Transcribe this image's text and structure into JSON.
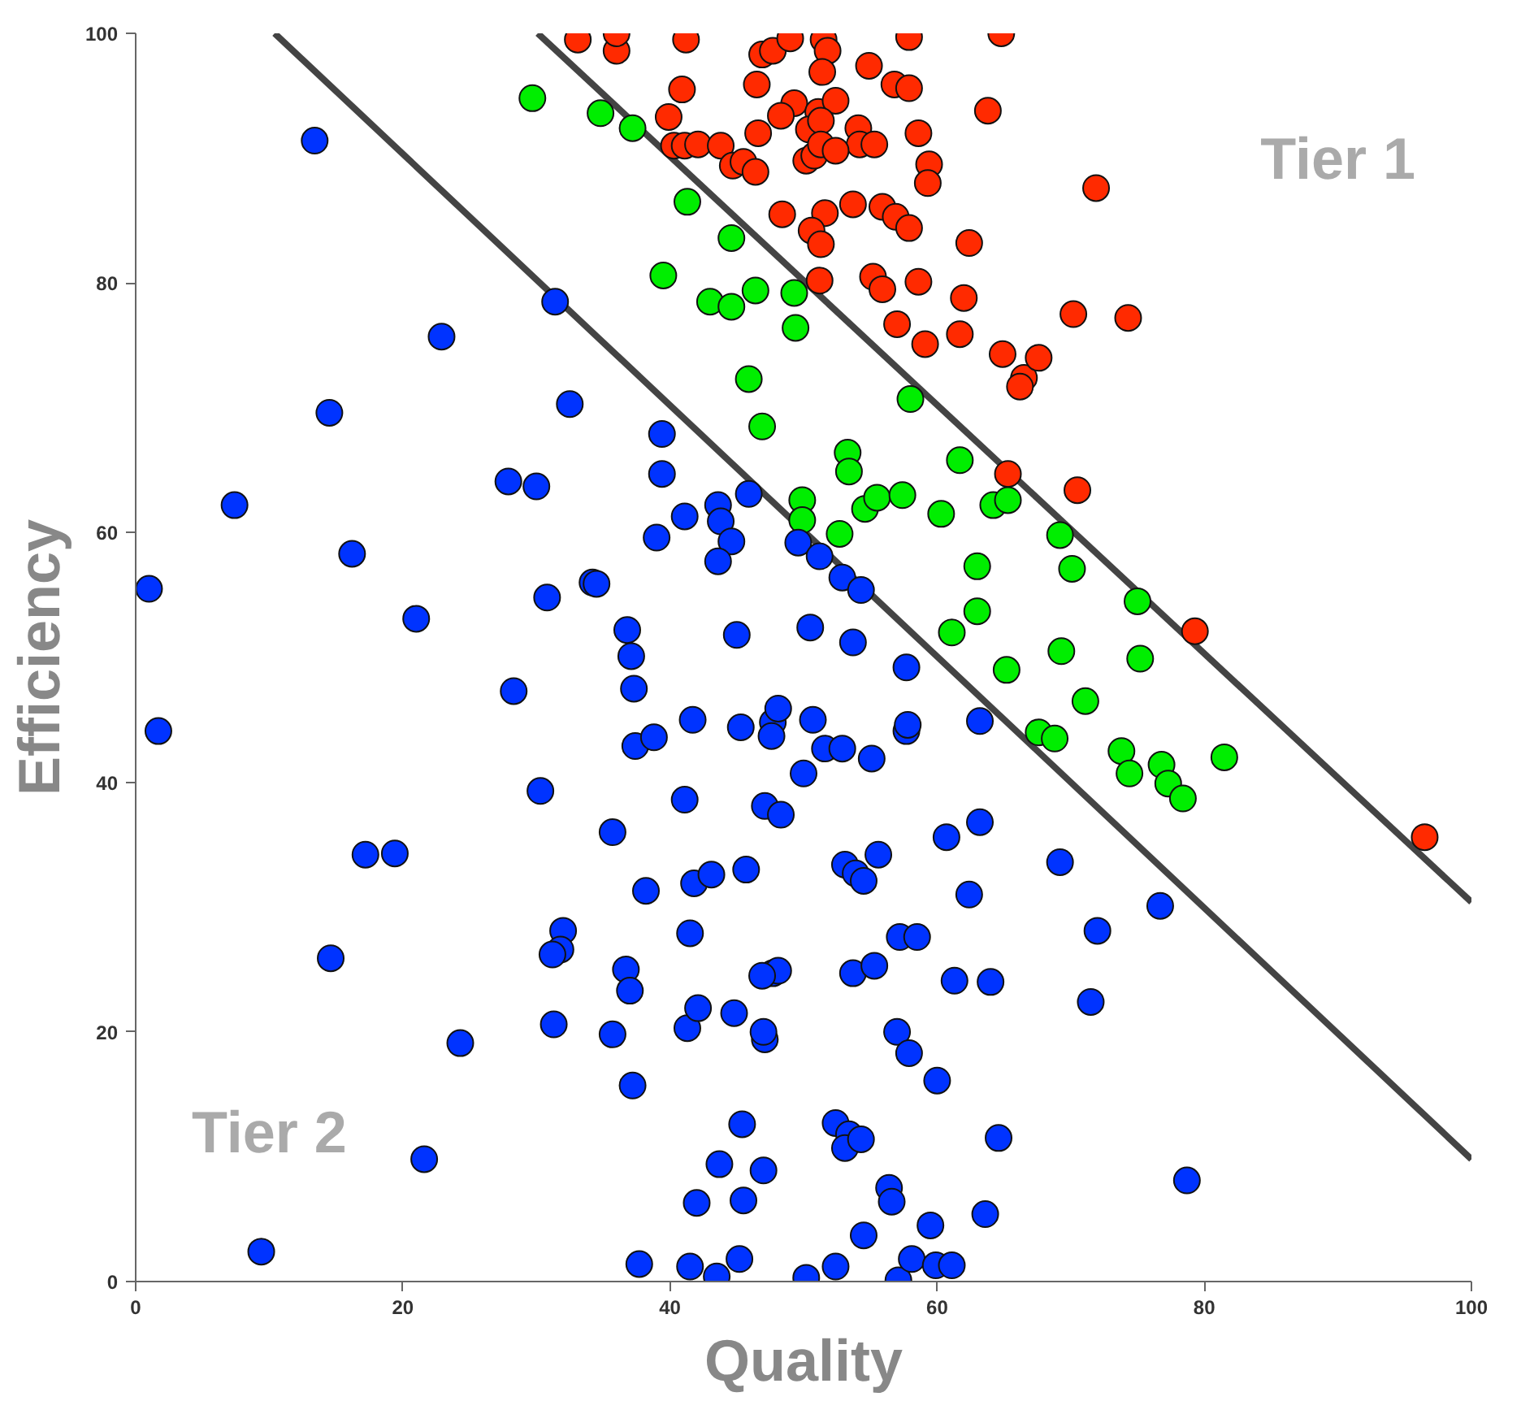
{
  "chart_data": {
    "type": "scatter",
    "xlabel": "Quality",
    "ylabel": "Efficiency",
    "xlim": [
      0,
      100
    ],
    "ylim": [
      0,
      100
    ],
    "xticks": [
      0,
      20,
      40,
      60,
      80,
      100
    ],
    "yticks": [
      0,
      20,
      40,
      60,
      80,
      100
    ],
    "marker": "circle",
    "annotations": [
      "Tier 1",
      "Tier 2"
    ],
    "series": [
      {
        "type": "line",
        "marker": "none",
        "color": "#444444",
        "x": [
          10.4,
          100
        ],
        "values": [
          100,
          9.8
        ]
      },
      {
        "type": "line",
        "marker": "none",
        "color": "#444444",
        "x": [
          30.1,
          100
        ],
        "values": [
          100,
          30.4
        ]
      },
      {
        "color": "#ff2a00",
        "x": [
          33.1,
          36.0,
          36.0,
          41.2,
          46.9,
          47.7,
          49.0,
          51.5,
          51.8,
          57.9,
          64.8,
          40.9,
          39.9,
          46.5,
          51.4,
          54.9,
          56.8,
          57.9,
          49.3,
          51.1,
          52.4,
          63.8,
          48.3,
          40.3,
          41.1,
          42.1,
          43.8,
          46.6,
          50.4,
          51.3,
          54.1,
          54.2,
          55.3,
          58.6,
          59.4,
          59.3,
          44.7,
          45.5,
          46.4,
          50.2,
          50.8,
          51.3,
          52.4,
          71.9,
          48.4,
          51.6,
          53.7,
          55.9,
          56.9,
          57.9,
          50.6,
          51.3,
          62.4,
          51.2,
          55.2,
          55.9,
          58.6,
          62.0,
          57.0,
          59.1,
          61.7,
          64.9,
          66.5,
          66.2,
          67.6,
          70.2,
          74.3,
          65.3,
          70.5,
          79.3,
          96.5
        ],
        "values": [
          99.5,
          98.6,
          100,
          99.5,
          98.3,
          98.6,
          99.6,
          99.5,
          98.6,
          99.7,
          100,
          95.5,
          93.3,
          95.9,
          96.9,
          97.4,
          95.9,
          95.6,
          94.4,
          93.7,
          94.6,
          93.8,
          93.4,
          91,
          91,
          91.1,
          91,
          92,
          92.3,
          93,
          92.4,
          91.1,
          91.1,
          92,
          89.5,
          88,
          89.4,
          89.7,
          88.9,
          89.8,
          90.2,
          91.1,
          90.6,
          87.6,
          85.5,
          85.6,
          86.3,
          86.1,
          85.3,
          84.4,
          84.2,
          83.1,
          83.2,
          80.2,
          80.5,
          79.5,
          80.1,
          78.8,
          76.7,
          75.1,
          75.9,
          74.3,
          72.4,
          71.7,
          74,
          77.5,
          77.2,
          64.7,
          63.4,
          52.1,
          35.6
        ]
      },
      {
        "color": "#00ee00",
        "x": [
          29.7,
          34.8,
          37.2,
          41.3,
          44.6,
          39.5,
          43.0,
          44.6,
          46.4,
          49.3,
          49.4,
          45.9,
          46.9,
          58.0,
          53.3,
          53.4,
          61.7,
          49.9,
          54.6,
          55.5,
          57.4,
          60.3,
          49.9,
          52.7,
          64.2,
          65.3,
          69.2,
          70.1,
          63.0,
          61.1,
          63.0,
          75.0,
          65.2,
          69.3,
          75.2,
          71.1,
          67.6,
          68.8,
          73.8,
          74.4,
          76.8,
          77.3,
          78.4,
          81.5
        ],
        "values": [
          94.8,
          93.6,
          92.4,
          86.5,
          83.6,
          80.6,
          78.5,
          78.1,
          79.4,
          79.2,
          76.4,
          72.3,
          68.5,
          70.7,
          66.4,
          64.9,
          65.8,
          62.6,
          61.9,
          62.8,
          63,
          61.5,
          61,
          59.9,
          62.2,
          62.6,
          59.8,
          57.1,
          57.3,
          52,
          53.7,
          54.5,
          49,
          50.5,
          49.9,
          46.5,
          44,
          43.5,
          42.5,
          40.7,
          41.4,
          39.9,
          38.7,
          42
        ]
      },
      {
        "color": "#0033ff",
        "x": [
          13.4,
          31.4,
          22.9,
          32.5,
          14.5,
          39.4,
          39.4,
          27.9,
          30,
          45.9,
          7.4,
          41.1,
          43.6,
          43.8,
          44.6,
          43.6,
          39.0,
          49.6,
          51.2,
          52.9,
          54.3,
          16.2,
          34.2,
          34.5,
          30.8,
          21,
          1.0,
          36.8,
          37.1,
          37.3,
          45.0,
          50.5,
          53.7,
          57.7,
          28.3,
          1.7,
          37.4,
          38.8,
          41.7,
          45.3,
          47.7,
          48.1,
          47.6,
          50.7,
          51.6,
          52.9,
          55.1,
          57.7,
          57.8,
          63.2,
          30.3,
          41.1,
          47.1,
          48.3,
          50.0,
          19.4,
          17.2,
          35.7,
          69.2,
          60.7,
          63.2,
          38.2,
          41.8,
          43.1,
          45.7,
          53.1,
          53.9,
          54.5,
          55.6,
          62.4,
          32.0,
          31.8,
          31.2,
          14.6,
          36.7,
          37.0,
          41.5,
          47.7,
          48.1,
          46.9,
          53.7,
          55.3,
          57.2,
          58.5,
          61.3,
          64.0,
          72.0,
          76.7,
          71.5,
          31.3,
          35.7,
          41.3,
          42.1,
          44.8,
          47.1,
          47.0,
          57.0,
          57.9,
          60.0,
          24.3,
          37.2,
          45.4,
          52.4,
          53.4,
          53.1,
          54.3,
          56.4,
          56.6,
          43.7,
          47.0,
          42.0,
          45.5,
          64.6,
          78.7,
          21.6,
          59.5,
          63.6,
          9.4,
          37.7,
          41.5,
          43.5,
          45.2,
          50.2,
          52.4,
          54.5,
          57.1,
          58.1,
          59.9,
          61.1
        ],
        "values": [
          91.4,
          78.5,
          75.7,
          70.3,
          69.6,
          67.9,
          64.7,
          64.1,
          63.7,
          63.1,
          62.2,
          61.3,
          62.2,
          60.9,
          59.3,
          57.7,
          59.6,
          59.2,
          58.1,
          56.4,
          55.4,
          58.3,
          56,
          55.9,
          54.8,
          53.1,
          55.5,
          52.2,
          50.1,
          47.5,
          51.8,
          52.4,
          51.2,
          49.2,
          47.3,
          44.1,
          42.9,
          43.6,
          45,
          44.4,
          44.8,
          45.9,
          43.7,
          45,
          42.7,
          42.7,
          41.9,
          44.1,
          44.6,
          44.9,
          39.3,
          38.6,
          38.1,
          37.4,
          40.7,
          34.3,
          34.2,
          36,
          33.6,
          35.6,
          36.8,
          31.3,
          31.9,
          32.6,
          33,
          33.4,
          32.7,
          32.1,
          34.2,
          31,
          28.1,
          26.6,
          26.2,
          25.9,
          25,
          23.3,
          27.9,
          24.7,
          24.9,
          24.5,
          24.7,
          25.3,
          27.6,
          27.6,
          24.1,
          24,
          28.1,
          30.1,
          22.4,
          20.6,
          19.8,
          20.3,
          21.9,
          21.5,
          19.4,
          20,
          20,
          18.3,
          16.1,
          19.1,
          15.7,
          12.6,
          12.7,
          11.8,
          10.7,
          11.4,
          7.5,
          6.4,
          9.4,
          8.9,
          6.3,
          6.5,
          11.5,
          8.1,
          9.8,
          4.5,
          5.4,
          2.4,
          1.4,
          1.2,
          0.4,
          1.8,
          0.3,
          1.2,
          3.7,
          0.1,
          1.8,
          1.3,
          1.3
        ]
      }
    ]
  }
}
